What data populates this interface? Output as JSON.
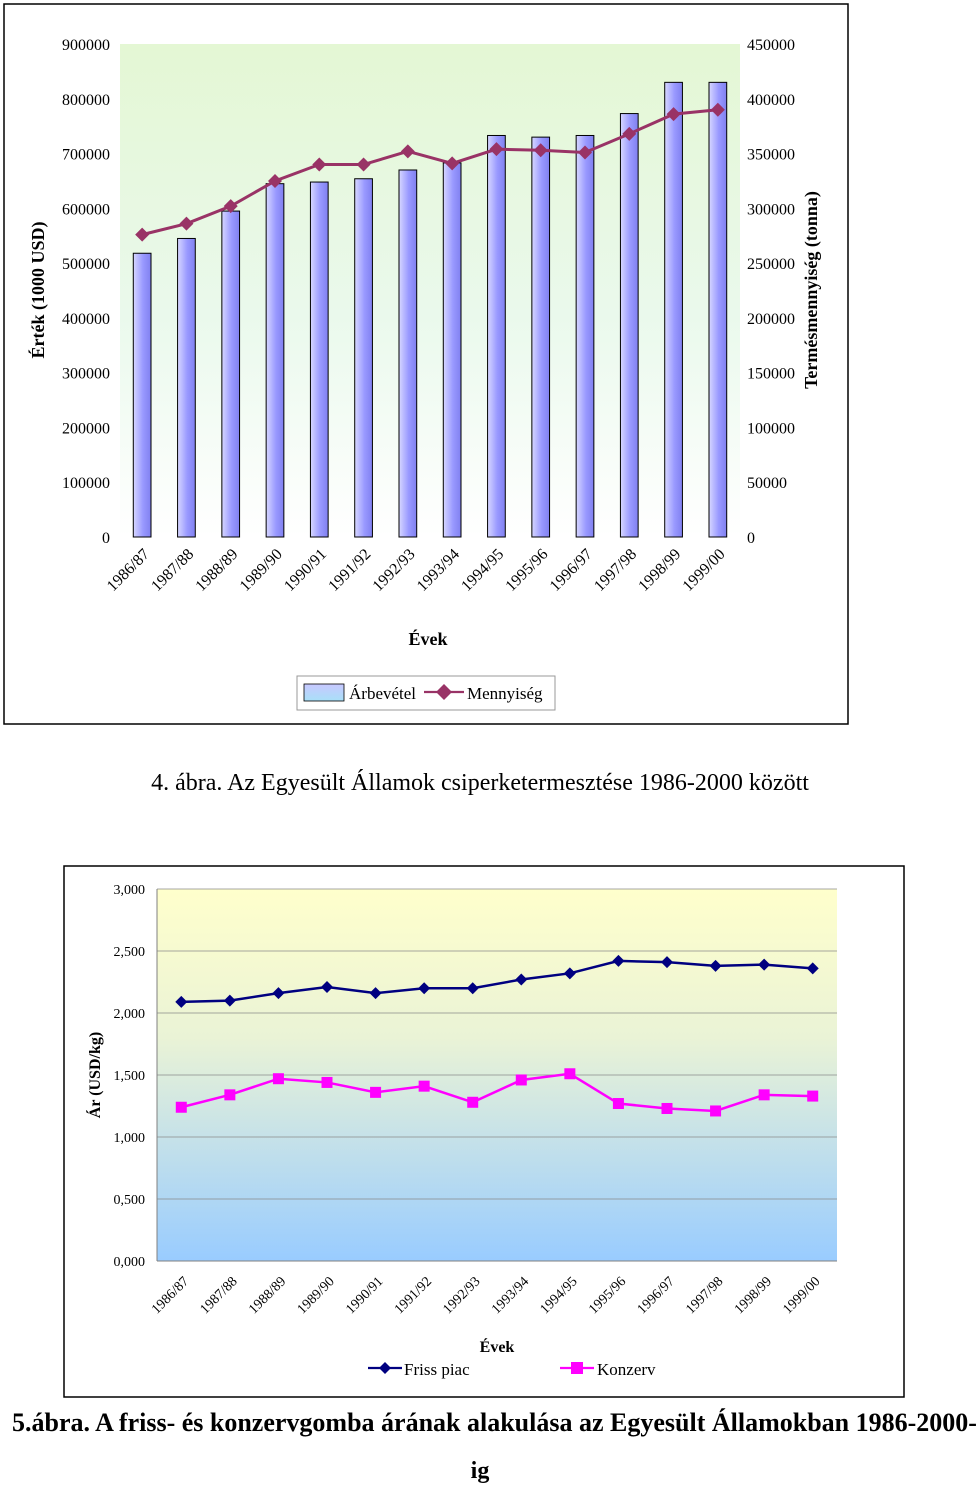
{
  "chart_data": [
    {
      "type": "bar",
      "categories": [
        "1986/87",
        "1987/88",
        "1988/89",
        "1989/90",
        "1990/91",
        "1991/92",
        "1992/93",
        "1993/94",
        "1994/95",
        "1995/96",
        "1996/97",
        "1997/98",
        "1998/99",
        "1999/00"
      ],
      "xlabel": "Évek",
      "ylabel": "Érték (1000 USD)",
      "y2label": "Termésmennyiség (tonna)",
      "ylim": [
        0,
        900000
      ],
      "y2lim": [
        0,
        450000
      ],
      "yticks": [
        "0",
        "100000",
        "200000",
        "300000",
        "400000",
        "500000",
        "600000",
        "700000",
        "800000",
        "900000"
      ],
      "y2ticks": [
        "0",
        "50000",
        "100000",
        "150000",
        "200000",
        "250000",
        "300000",
        "350000",
        "400000",
        "450000"
      ],
      "series": [
        {
          "name": "Árbevétel",
          "type": "bar",
          "axis": "left",
          "color": "#9999ff",
          "values": [
            518000,
            545000,
            595000,
            645000,
            648000,
            654000,
            670000,
            683000,
            733000,
            730000,
            733000,
            773000,
            830000,
            830000
          ]
        },
        {
          "name": "Mennyiség",
          "type": "line",
          "axis": "right",
          "color": "#993366",
          "values": [
            276000,
            286000,
            302000,
            325000,
            340000,
            340000,
            352000,
            341000,
            354000,
            353000,
            351000,
            368000,
            386000,
            390000
          ]
        }
      ],
      "legend": "bottom",
      "grid": false
    },
    {
      "type": "line",
      "categories": [
        "1986/87",
        "1987/88",
        "1988/89",
        "1989/90",
        "1990/91",
        "1991/92",
        "1992/93",
        "1993/94",
        "1994/95",
        "1995/96",
        "1996/97",
        "1997/98",
        "1998/99",
        "1999/00"
      ],
      "xlabel": "Évek",
      "ylabel": "Ár (USD/kg)",
      "ylim": [
        0,
        3
      ],
      "yticks": [
        "0,000",
        "0,500",
        "1,000",
        "1,500",
        "2,000",
        "2,500",
        "3,000"
      ],
      "series": [
        {
          "name": "Friss piac",
          "color": "#000080",
          "marker": "diamond",
          "values": [
            2.09,
            2.1,
            2.16,
            2.21,
            2.16,
            2.2,
            2.2,
            2.27,
            2.32,
            2.42,
            2.41,
            2.38,
            2.39,
            2.36
          ]
        },
        {
          "name": "Konzerv",
          "color": "#ff00ff",
          "marker": "square",
          "values": [
            1.24,
            1.34,
            1.47,
            1.44,
            1.36,
            1.41,
            1.28,
            1.46,
            1.51,
            1.27,
            1.23,
            1.21,
            1.34,
            1.33
          ]
        }
      ],
      "legend": "bottom",
      "grid": true
    }
  ],
  "captions": {
    "fig4": "4. ábra. Az Egyesült Államok csiperketermesztése 1986-2000 között",
    "fig5_line1": "5.ábra. A friss- és konzervgomba árának alakulása az Egyesült Államokban 1986-2000-",
    "fig5_line2": "ig"
  }
}
